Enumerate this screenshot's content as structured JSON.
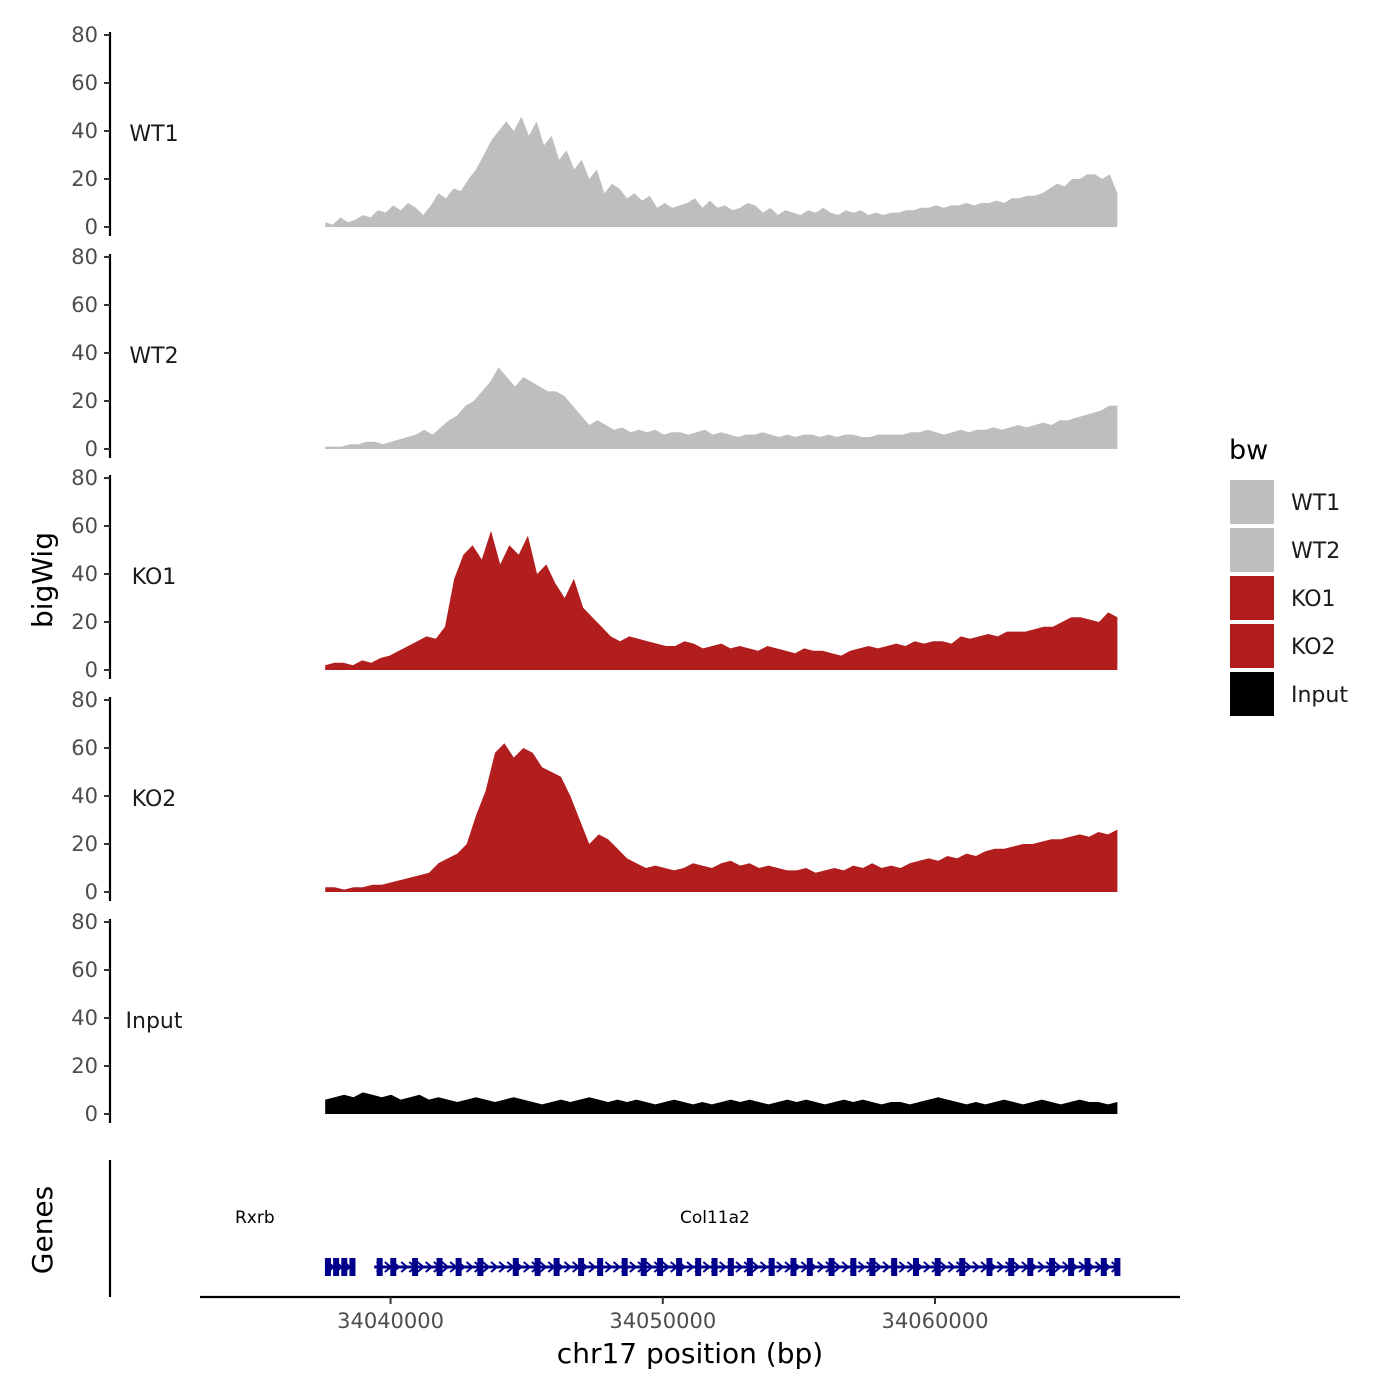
{
  "chart_data": {
    "type": "area",
    "title": "",
    "ylabel": "bigWig",
    "xlabel": "chr17 position (bp)",
    "genes_label": "Genes",
    "xlim": [
      34033000,
      34069000
    ],
    "ylim": [
      0,
      80
    ],
    "y_ticks": [
      "0",
      "20",
      "40",
      "60",
      "80"
    ],
    "x_ticks": [
      {
        "value": 34040000,
        "label": "34040000"
      },
      {
        "value": 34050000,
        "label": "34050000"
      },
      {
        "value": 34060000,
        "label": "34060000"
      }
    ],
    "data_range": [
      34037600,
      34066700
    ],
    "tracks": [
      {
        "name": "WT1",
        "color": "#bebebe",
        "values": [
          2,
          1,
          4,
          2,
          3,
          5,
          4,
          7,
          6,
          9,
          7,
          10,
          8,
          5,
          9,
          14,
          12,
          16,
          15,
          20,
          24,
          30,
          36,
          40,
          44,
          40,
          46,
          38,
          44,
          34,
          38,
          28,
          32,
          24,
          28,
          20,
          24,
          14,
          18,
          16,
          12,
          14,
          11,
          13,
          8,
          10,
          8,
          9,
          10,
          12,
          8,
          11,
          8,
          9,
          7,
          8,
          10,
          9,
          6,
          8,
          5,
          7,
          6,
          5,
          7,
          6,
          8,
          6,
          5,
          7,
          6,
          7,
          5,
          6,
          5,
          6,
          6,
          7,
          7,
          8,
          8,
          9,
          8,
          9,
          9,
          10,
          9,
          10,
          10,
          11,
          10,
          12,
          12,
          13,
          13,
          14,
          16,
          18,
          17,
          20,
          20,
          22,
          22,
          20,
          22,
          14
        ]
      },
      {
        "name": "WT2",
        "color": "#bebebe",
        "values": [
          1,
          1,
          1,
          2,
          2,
          3,
          3,
          2,
          3,
          4,
          5,
          6,
          8,
          6,
          9,
          12,
          14,
          18,
          20,
          24,
          28,
          34,
          30,
          26,
          30,
          28,
          26,
          24,
          24,
          22,
          18,
          14,
          10,
          12,
          10,
          8,
          9,
          7,
          8,
          7,
          8,
          6,
          7,
          7,
          6,
          7,
          8,
          6,
          7,
          6,
          5,
          6,
          6,
          7,
          6,
          5,
          6,
          5,
          6,
          6,
          5,
          6,
          5,
          6,
          6,
          5,
          5,
          6,
          6,
          6,
          6,
          7,
          7,
          8,
          7,
          6,
          7,
          8,
          7,
          8,
          8,
          9,
          8,
          9,
          10,
          9,
          10,
          11,
          10,
          12,
          12,
          13,
          14,
          15,
          16,
          18,
          18
        ]
      },
      {
        "name": "KO1",
        "color": "#b21e1e",
        "values": [
          2,
          3,
          3,
          2,
          4,
          3,
          5,
          6,
          8,
          10,
          12,
          14,
          13,
          18,
          38,
          48,
          52,
          46,
          58,
          44,
          52,
          48,
          56,
          40,
          44,
          36,
          30,
          38,
          26,
          22,
          18,
          14,
          12,
          14,
          13,
          12,
          11,
          10,
          10,
          12,
          11,
          9,
          10,
          11,
          9,
          10,
          9,
          8,
          10,
          9,
          8,
          7,
          9,
          8,
          8,
          7,
          6,
          8,
          9,
          10,
          9,
          10,
          11,
          10,
          12,
          11,
          12,
          12,
          11,
          14,
          13,
          14,
          15,
          14,
          16,
          16,
          16,
          17,
          18,
          18,
          20,
          22,
          22,
          21,
          20,
          24,
          22
        ]
      },
      {
        "name": "KO2",
        "color": "#b21e1e",
        "values": [
          2,
          2,
          1,
          2,
          2,
          3,
          3,
          4,
          5,
          6,
          7,
          8,
          12,
          14,
          16,
          20,
          32,
          42,
          58,
          62,
          56,
          60,
          58,
          52,
          50,
          48,
          40,
          30,
          20,
          24,
          22,
          18,
          14,
          12,
          10,
          11,
          10,
          9,
          10,
          12,
          11,
          10,
          12,
          13,
          11,
          12,
          10,
          11,
          10,
          9,
          9,
          10,
          8,
          9,
          10,
          9,
          11,
          10,
          12,
          10,
          11,
          10,
          12,
          13,
          14,
          13,
          15,
          14,
          16,
          15,
          17,
          18,
          18,
          19,
          20,
          20,
          21,
          22,
          22,
          23,
          24,
          23,
          25,
          24,
          26
        ]
      },
      {
        "name": "Input",
        "color": "#000000",
        "values": [
          6,
          7,
          8,
          7,
          9,
          8,
          7,
          8,
          6,
          7,
          8,
          6,
          7,
          6,
          5,
          6,
          7,
          6,
          5,
          6,
          7,
          6,
          5,
          4,
          5,
          6,
          5,
          6,
          7,
          6,
          5,
          6,
          5,
          6,
          5,
          4,
          5,
          6,
          5,
          4,
          5,
          4,
          5,
          6,
          5,
          6,
          5,
          4,
          5,
          6,
          5,
          6,
          5,
          4,
          5,
          6,
          5,
          6,
          5,
          4,
          5,
          5,
          4,
          5,
          6,
          7,
          6,
          5,
          4,
          5,
          4,
          5,
          6,
          5,
          4,
          5,
          6,
          5,
          4,
          5,
          6,
          5,
          5,
          4,
          5
        ]
      }
    ],
    "legend": {
      "title": "bw",
      "position": "right",
      "entries": [
        {
          "label": "WT1",
          "color": "#bebebe"
        },
        {
          "label": "WT2",
          "color": "#bebebe"
        },
        {
          "label": "KO1",
          "color": "#b21e1e"
        },
        {
          "label": "KO2",
          "color": "#b21e1e"
        },
        {
          "label": "Input",
          "color": "#000000"
        }
      ]
    },
    "genes": [
      {
        "name": "Rxrb",
        "start": 34037600,
        "end": 34038700,
        "strand": "+",
        "color": "#00008b",
        "exons": [
          34037700,
          34038000,
          34038300,
          34038600
        ]
      },
      {
        "name": "Col11a2",
        "start": 34039400,
        "end": 34066800,
        "strand": "+",
        "color": "#00008b",
        "exons": [
          34039600,
          34040100,
          34040900,
          34041800,
          34042500,
          34043300,
          34044600,
          34045400,
          34046100,
          34047000,
          34047700,
          34048600,
          34049300,
          34049900,
          34050600,
          34051300,
          34051900,
          34052500,
          34053200,
          34054000,
          34054800,
          34055400,
          34056200,
          34057000,
          34057700,
          34058500,
          34059300,
          34060100,
          34061000,
          34062000,
          34062800,
          34063500,
          34064300,
          34065000,
          34065600,
          34066200,
          34066700
        ]
      }
    ]
  }
}
